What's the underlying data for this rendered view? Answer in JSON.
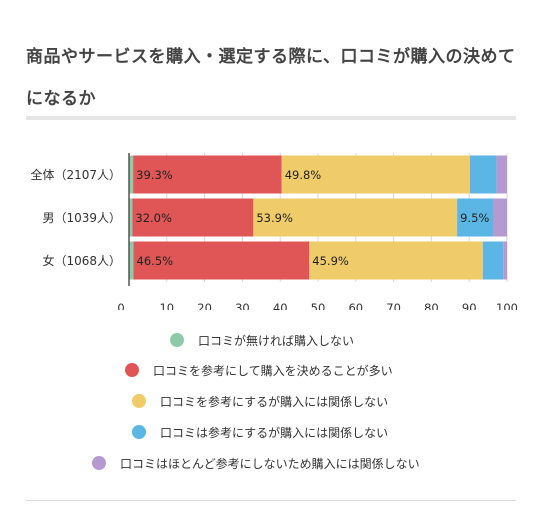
{
  "title": "商品やサービスを購入・選定する際に、口コミが購入の決めてになるか",
  "chart_data": {
    "type": "bar",
    "orientation": "horizontal",
    "stacked": true,
    "categories": [
      "全体（2107人）",
      "男（1039人）",
      "女（1068人）"
    ],
    "series": [
      {
        "name": "口コミが無ければ購入しない",
        "color": "#8fcaa8",
        "values": [
          1.1,
          0.9,
          1.2
        ]
      },
      {
        "name": "口コミを参考にして購入を決めることが多い",
        "color": "#e05555",
        "values": [
          39.3,
          32.0,
          46.5
        ]
      },
      {
        "name": "口コミを参考にするが購入には関係しない",
        "color": "#f0cb69",
        "values": [
          49.8,
          53.9,
          45.9
        ]
      },
      {
        "name": "口コミは参考にするが購入には関係しない",
        "color": "#5bb6e6",
        "values": [
          7.0,
          9.5,
          5.4
        ]
      },
      {
        "name": "口コミはほとんど参考にしないため購入には関係しない",
        "color": "#b49ad0",
        "values": [
          2.8,
          3.7,
          1.0
        ]
      }
    ],
    "data_labels": [
      [
        "",
        "39.3%",
        "49.8%",
        "",
        ""
      ],
      [
        "",
        "32.0%",
        "53.9%",
        "9.5%",
        ""
      ],
      [
        "",
        "46.5%",
        "45.9%",
        "",
        ""
      ]
    ],
    "x_ticks": [
      "0",
      "10",
      "20",
      "30",
      "40",
      "50",
      "60",
      "70",
      "80",
      "90",
      "100"
    ],
    "xlim": [
      0,
      100
    ],
    "grid": true,
    "legend_position": "bottom"
  }
}
